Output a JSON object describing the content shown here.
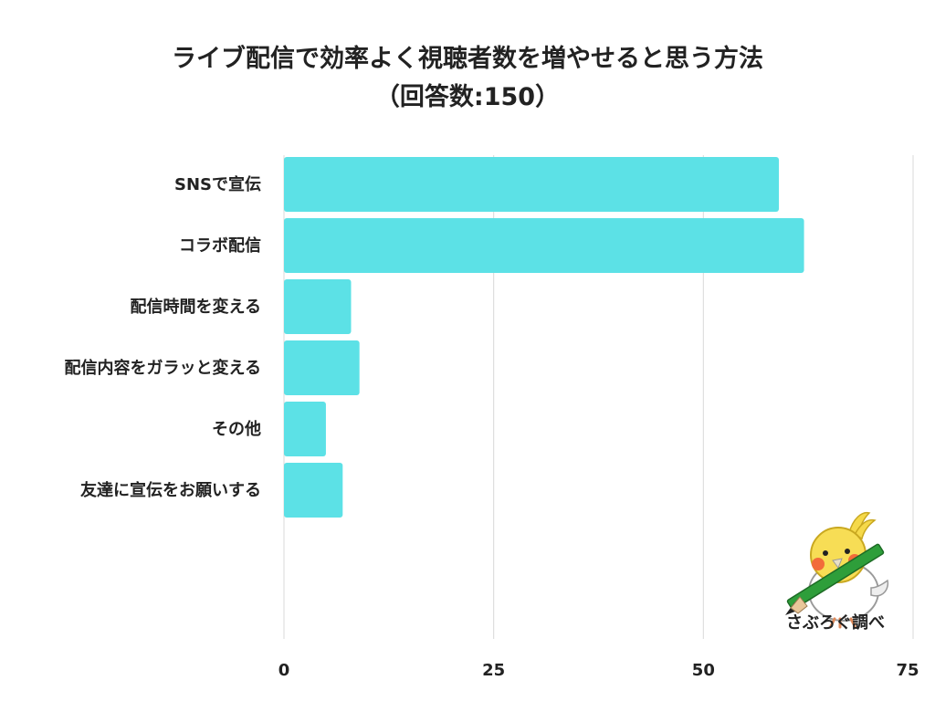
{
  "title": {
    "line1": "ライブ配信で効率よく視聴者数を増やせると思う方法",
    "line2": "（回答数:150）"
  },
  "credit": "さぶろぐ調べ",
  "colors": {
    "bar": "#5ce1e6",
    "grid": "#d9d9d9",
    "text": "#222222"
  },
  "chart_data": {
    "type": "bar",
    "orientation": "horizontal",
    "title": "ライブ配信で効率よく視聴者数を増やせると思う方法（回答数:150）",
    "categories": [
      "SNSで宣伝",
      "コラボ配信",
      "配信時間を変える",
      "配信内容をガラッと変える",
      "その他",
      "友達に宣伝をお願いする"
    ],
    "values": [
      59,
      62,
      8,
      9,
      5,
      7
    ],
    "xlim": [
      0,
      75
    ],
    "xticks": [
      0,
      25,
      50,
      75
    ],
    "grid": true,
    "xlabel": "",
    "ylabel": ""
  }
}
